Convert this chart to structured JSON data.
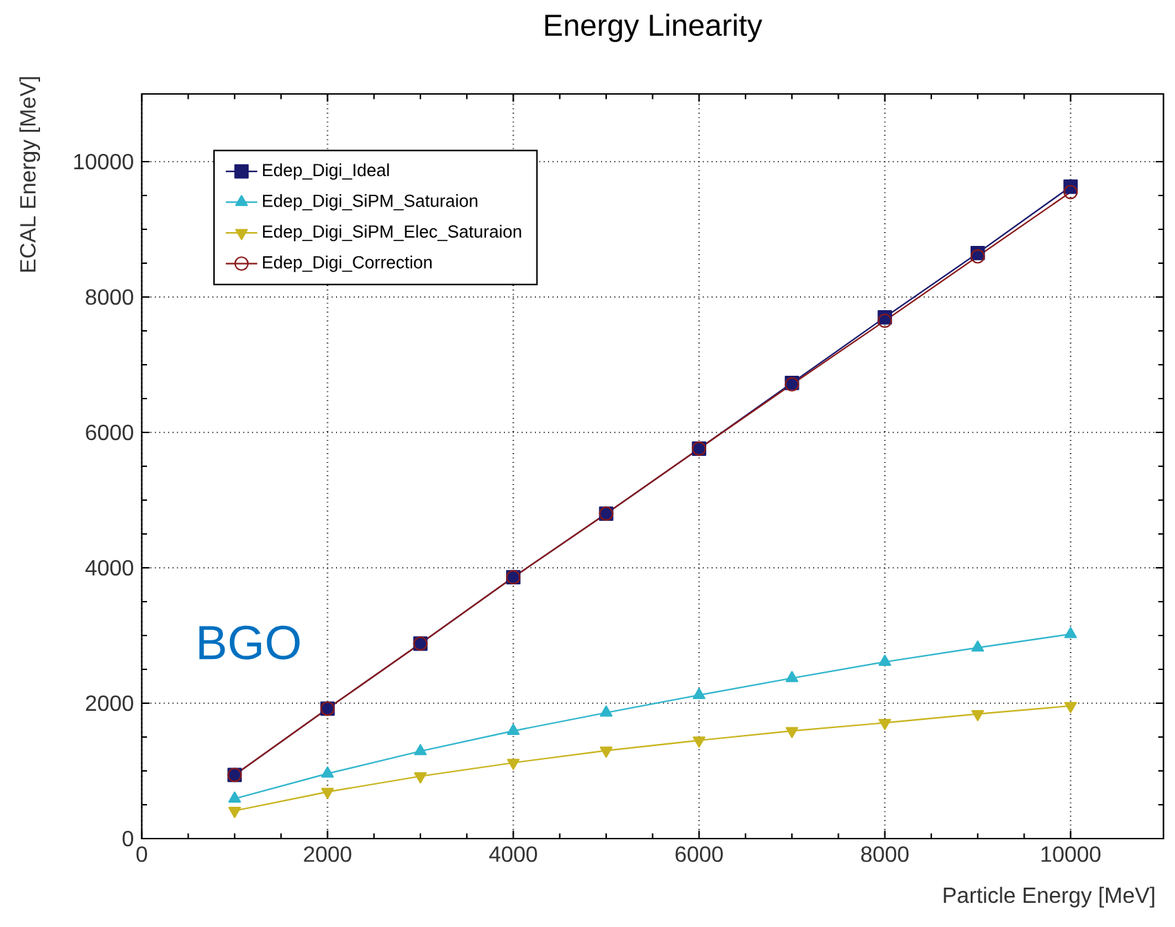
{
  "chart_data": {
    "type": "line",
    "title": "Energy Linearity",
    "xlabel": "Particle Energy [MeV]",
    "ylabel": "ECAL Energy [MeV]",
    "x": [
      1000,
      2000,
      3000,
      4000,
      5000,
      6000,
      7000,
      8000,
      9000,
      10000
    ],
    "series": [
      {
        "name": "Edep_Digi_Ideal",
        "color": "#1a1a6e",
        "marker": "square",
        "values": [
          940,
          1920,
          2880,
          3860,
          4800,
          5760,
          6730,
          7700,
          8650,
          9630
        ]
      },
      {
        "name": "Edep_Digi_SiPM_Saturaion",
        "color": "#2eb5cc",
        "marker": "triangle",
        "values": [
          590,
          960,
          1290,
          1590,
          1860,
          2120,
          2370,
          2610,
          2820,
          3020
        ]
      },
      {
        "name": "Edep_Digi_SiPM_Elec_Saturaion",
        "color": "#c8b41e",
        "marker": "triangle-down",
        "values": [
          410,
          690,
          920,
          1120,
          1300,
          1450,
          1590,
          1710,
          1840,
          1960
        ]
      },
      {
        "name": "Edep_Digi_Correction",
        "color": "#8b1a1a",
        "marker": "circle",
        "values": [
          940,
          1920,
          2880,
          3860,
          4800,
          5760,
          6710,
          7650,
          8600,
          9550
        ]
      }
    ],
    "xlim": [
      0,
      11000
    ],
    "ylim": [
      0,
      11000
    ],
    "xticks": [
      0,
      2000,
      4000,
      6000,
      8000,
      10000
    ],
    "yticks": [
      0,
      2000,
      4000,
      6000,
      8000,
      10000
    ],
    "grid": true,
    "legend": "top left",
    "line_style": "solid",
    "annotations": [
      "BGO"
    ]
  }
}
